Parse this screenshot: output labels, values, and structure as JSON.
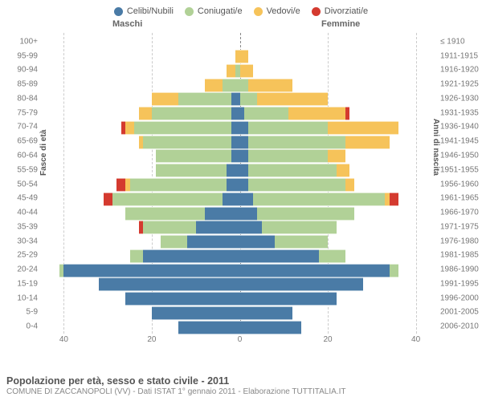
{
  "legend": [
    {
      "label": "Celibi/Nubili",
      "color": "#4a7ba6"
    },
    {
      "label": "Coniugati/e",
      "color": "#b1d197"
    },
    {
      "label": "Vedovi/e",
      "color": "#f6c35a"
    },
    {
      "label": "Divorziati/e",
      "color": "#d43a2f"
    }
  ],
  "gender_left": "Maschi",
  "gender_right": "Femmine",
  "y_axis_left_title": "Fasce di età",
  "y_axis_right_title": "Anni di nascita",
  "x_axis": {
    "max": 45,
    "ticks": [
      40,
      20,
      0,
      20,
      40
    ]
  },
  "footer_title": "Popolazione per età, sesso e stato civile - 2011",
  "footer_sub": "COMUNE DI ZACCANOPOLI (VV) - Dati ISTAT 1° gennaio 2011 - Elaborazione TUTTITALIA.IT",
  "colors": {
    "celibi": "#4a7ba6",
    "coniugati": "#b1d197",
    "vedovi": "#f6c35a",
    "divorziati": "#d43a2f",
    "grid": "#cccccc",
    "center": "#888888",
    "bg": "#ffffff"
  },
  "age_bands": [
    {
      "label": "100+",
      "birth": "≤ 1910",
      "m": {
        "c": 0,
        "co": 0,
        "v": 0,
        "d": 0
      },
      "f": {
        "c": 0,
        "co": 0,
        "v": 0,
        "d": 0
      }
    },
    {
      "label": "95-99",
      "birth": "1911-1915",
      "m": {
        "c": 0,
        "co": 0,
        "v": 1,
        "d": 0
      },
      "f": {
        "c": 0,
        "co": 0,
        "v": 2,
        "d": 0
      }
    },
    {
      "label": "90-94",
      "birth": "1916-1920",
      "m": {
        "c": 0,
        "co": 1,
        "v": 2,
        "d": 0
      },
      "f": {
        "c": 0,
        "co": 0,
        "v": 3,
        "d": 0
      }
    },
    {
      "label": "85-89",
      "birth": "1921-1925",
      "m": {
        "c": 0,
        "co": 4,
        "v": 4,
        "d": 0
      },
      "f": {
        "c": 0,
        "co": 2,
        "v": 10,
        "d": 0
      }
    },
    {
      "label": "80-84",
      "birth": "1926-1930",
      "m": {
        "c": 2,
        "co": 12,
        "v": 6,
        "d": 0
      },
      "f": {
        "c": 0,
        "co": 4,
        "v": 16,
        "d": 0
      }
    },
    {
      "label": "75-79",
      "birth": "1931-1935",
      "m": {
        "c": 2,
        "co": 18,
        "v": 3,
        "d": 0
      },
      "f": {
        "c": 1,
        "co": 10,
        "v": 13,
        "d": 1
      }
    },
    {
      "label": "70-74",
      "birth": "1936-1940",
      "m": {
        "c": 2,
        "co": 22,
        "v": 2,
        "d": 1
      },
      "f": {
        "c": 2,
        "co": 18,
        "v": 16,
        "d": 0
      }
    },
    {
      "label": "65-69",
      "birth": "1941-1945",
      "m": {
        "c": 2,
        "co": 20,
        "v": 1,
        "d": 0
      },
      "f": {
        "c": 2,
        "co": 22,
        "v": 10,
        "d": 0
      }
    },
    {
      "label": "60-64",
      "birth": "1946-1950",
      "m": {
        "c": 2,
        "co": 17,
        "v": 0,
        "d": 0
      },
      "f": {
        "c": 2,
        "co": 18,
        "v": 4,
        "d": 0
      }
    },
    {
      "label": "55-59",
      "birth": "1951-1955",
      "m": {
        "c": 3,
        "co": 16,
        "v": 0,
        "d": 0
      },
      "f": {
        "c": 2,
        "co": 20,
        "v": 3,
        "d": 0
      }
    },
    {
      "label": "50-54",
      "birth": "1956-1960",
      "m": {
        "c": 3,
        "co": 22,
        "v": 1,
        "d": 2
      },
      "f": {
        "c": 2,
        "co": 22,
        "v": 2,
        "d": 0
      }
    },
    {
      "label": "45-49",
      "birth": "1961-1965",
      "m": {
        "c": 4,
        "co": 25,
        "v": 0,
        "d": 2
      },
      "f": {
        "c": 3,
        "co": 30,
        "v": 1,
        "d": 2
      }
    },
    {
      "label": "40-44",
      "birth": "1966-1970",
      "m": {
        "c": 8,
        "co": 18,
        "v": 0,
        "d": 0
      },
      "f": {
        "c": 4,
        "co": 22,
        "v": 0,
        "d": 0
      }
    },
    {
      "label": "35-39",
      "birth": "1971-1975",
      "m": {
        "c": 10,
        "co": 12,
        "v": 0,
        "d": 1
      },
      "f": {
        "c": 5,
        "co": 17,
        "v": 0,
        "d": 0
      }
    },
    {
      "label": "30-34",
      "birth": "1976-1980",
      "m": {
        "c": 12,
        "co": 6,
        "v": 0,
        "d": 0
      },
      "f": {
        "c": 8,
        "co": 12,
        "v": 0,
        "d": 0
      }
    },
    {
      "label": "25-29",
      "birth": "1981-1985",
      "m": {
        "c": 22,
        "co": 3,
        "v": 0,
        "d": 0
      },
      "f": {
        "c": 18,
        "co": 6,
        "v": 0,
        "d": 0
      }
    },
    {
      "label": "20-24",
      "birth": "1986-1990",
      "m": {
        "c": 40,
        "co": 1,
        "v": 0,
        "d": 0
      },
      "f": {
        "c": 34,
        "co": 2,
        "v": 0,
        "d": 0
      }
    },
    {
      "label": "15-19",
      "birth": "1991-1995",
      "m": {
        "c": 32,
        "co": 0,
        "v": 0,
        "d": 0
      },
      "f": {
        "c": 28,
        "co": 0,
        "v": 0,
        "d": 0
      }
    },
    {
      "label": "10-14",
      "birth": "1996-2000",
      "m": {
        "c": 26,
        "co": 0,
        "v": 0,
        "d": 0
      },
      "f": {
        "c": 22,
        "co": 0,
        "v": 0,
        "d": 0
      }
    },
    {
      "label": "5-9",
      "birth": "2001-2005",
      "m": {
        "c": 20,
        "co": 0,
        "v": 0,
        "d": 0
      },
      "f": {
        "c": 12,
        "co": 0,
        "v": 0,
        "d": 0
      }
    },
    {
      "label": "0-4",
      "birth": "2006-2010",
      "m": {
        "c": 14,
        "co": 0,
        "v": 0,
        "d": 0
      },
      "f": {
        "c": 14,
        "co": 0,
        "v": 0,
        "d": 0
      }
    }
  ]
}
